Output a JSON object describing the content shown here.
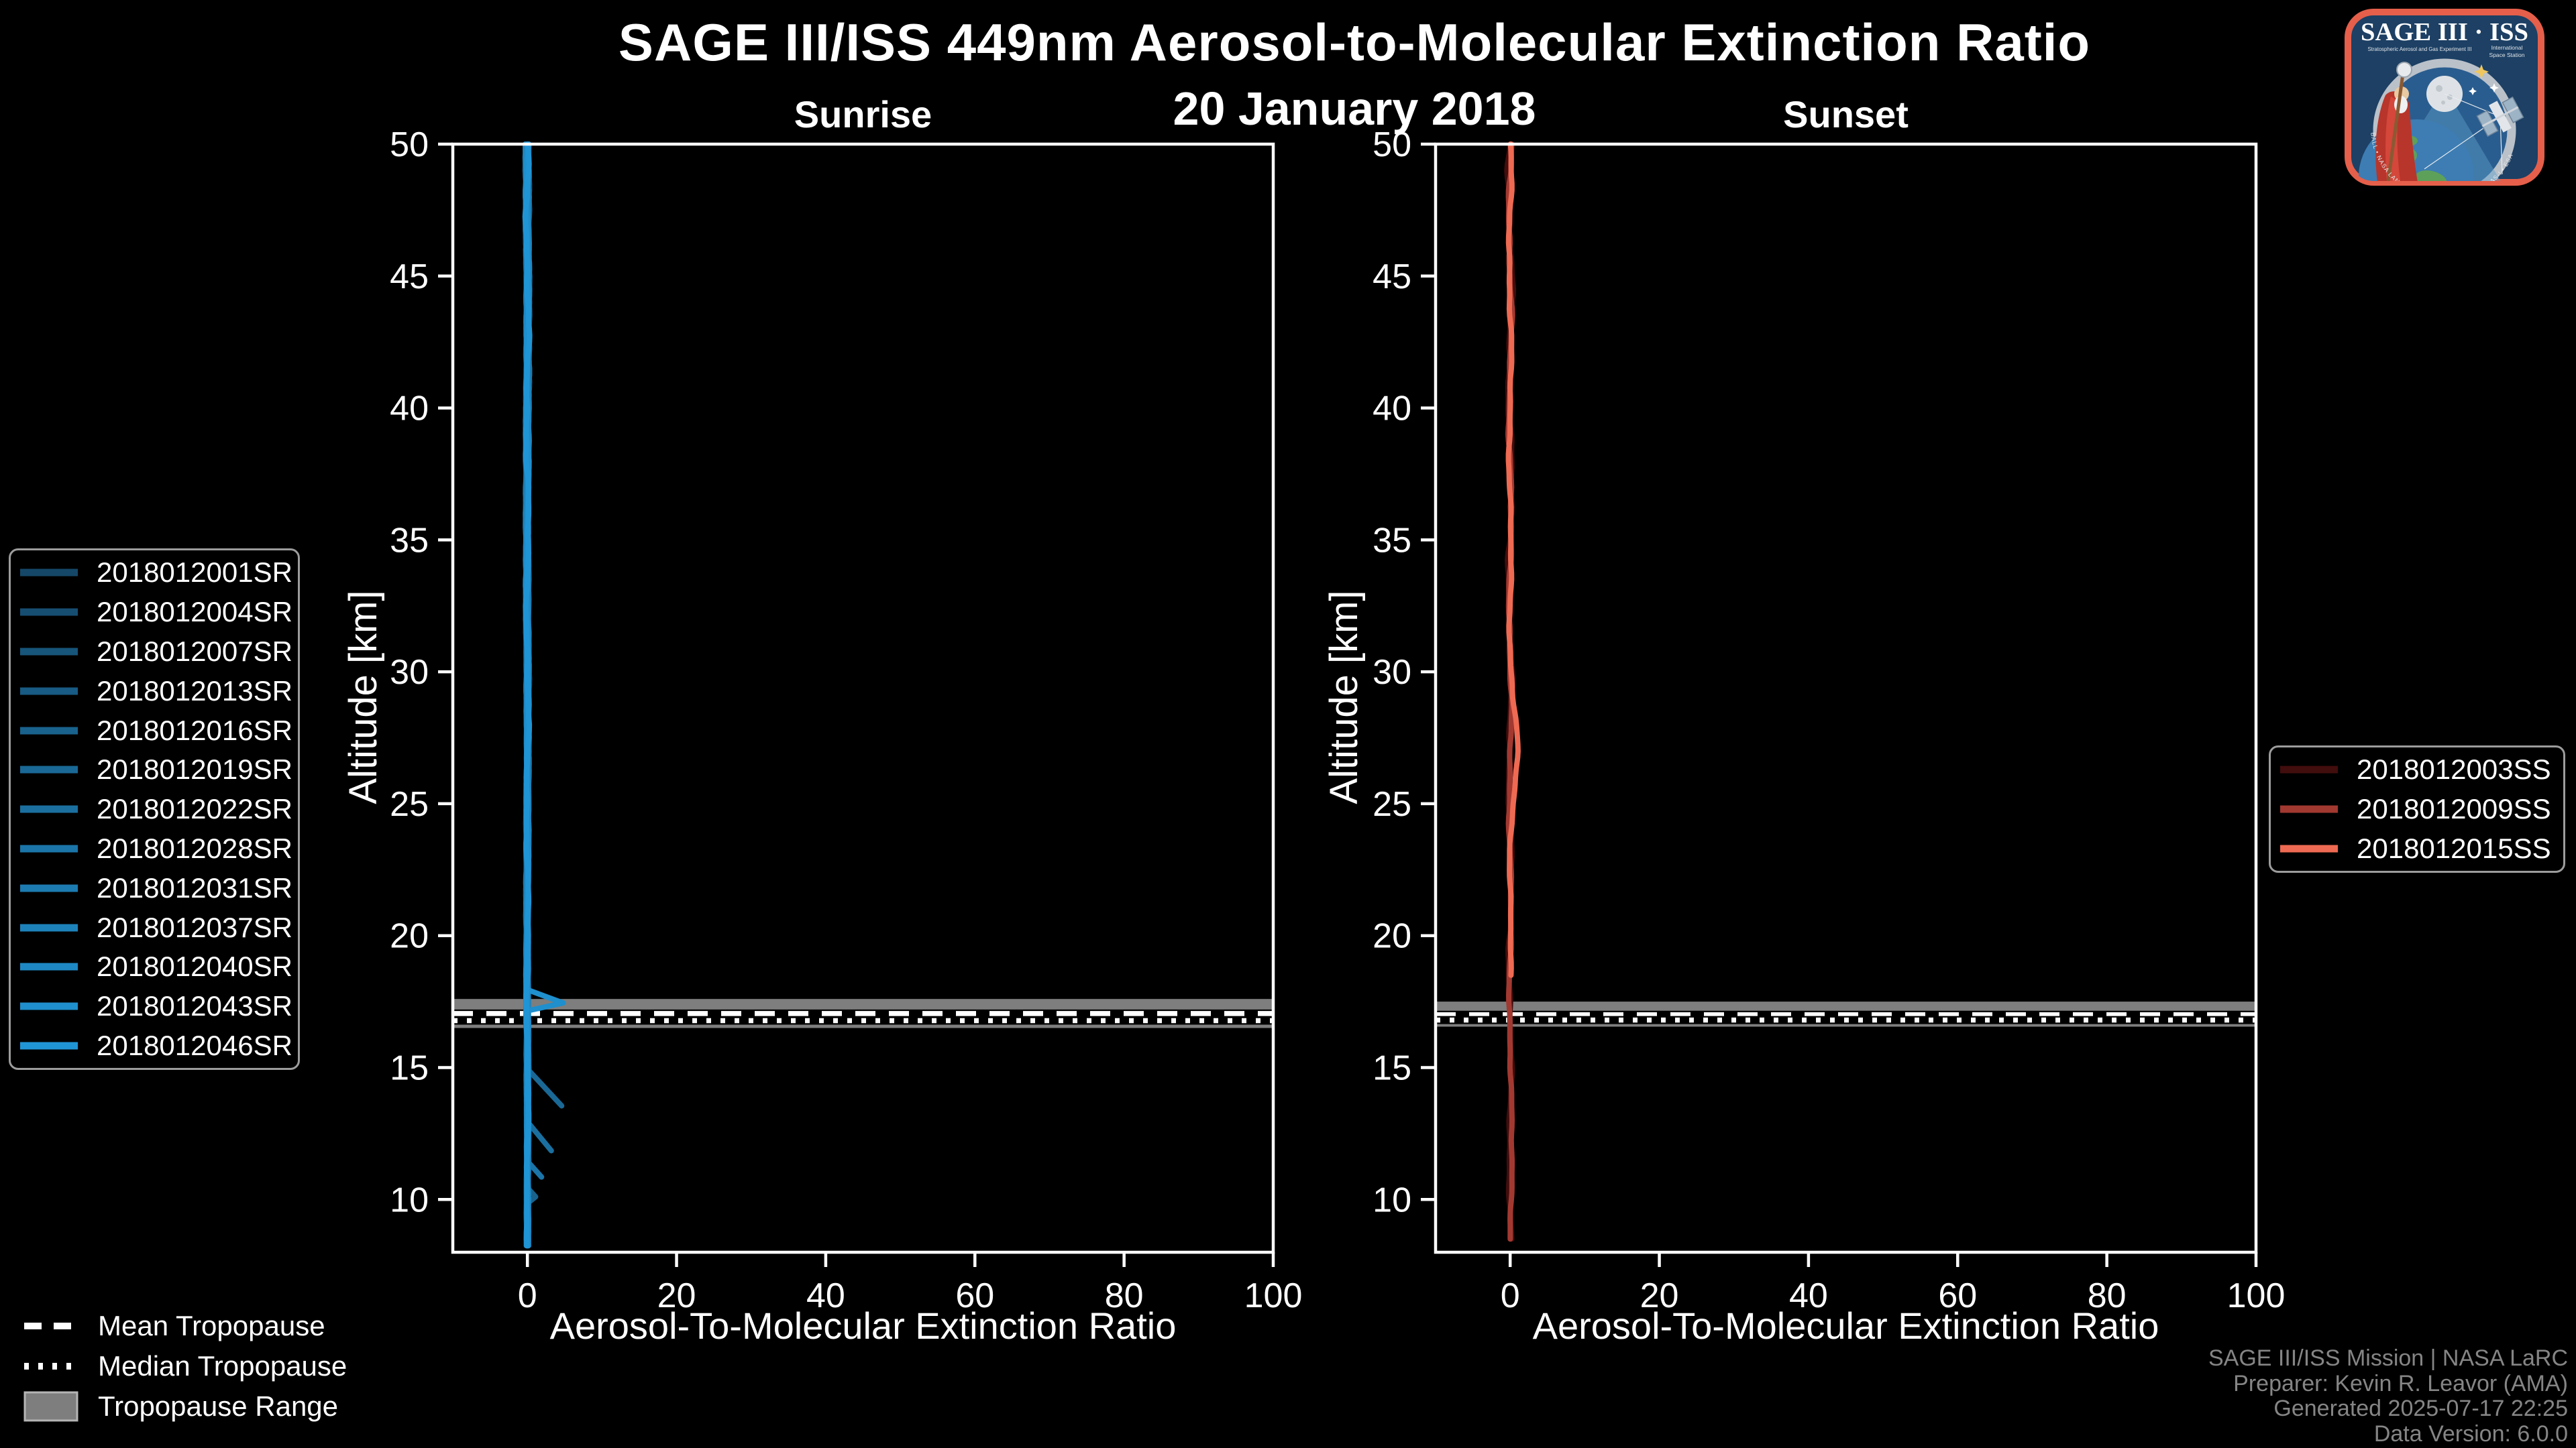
{
  "title": "SAGE III/ISS 449nm Aerosol-to-Molecular Extinction Ratio",
  "subtitle": "20 January 2018",
  "colors": {
    "background": "#000000",
    "foreground": "#ffffff",
    "tropopause_band": "#7e7e7e",
    "legend_border": "#9c9c9c",
    "credit_text": "#858585"
  },
  "tropopause_legend": {
    "mean_label": "Mean Tropopause",
    "median_label": "Median Tropopause",
    "range_label": "Tropopause Range"
  },
  "credit": {
    "line1": "SAGE III/ISS Mission | NASA LaRC",
    "line2": "Preparer: Kevin R. Leavor (AMA)",
    "line3": "Generated 2025-07-17 22:25",
    "line4": "Data Version: 6.0.0"
  },
  "logo": {
    "title": "SAGE III · ISS",
    "sub_left": "Stratospheric Aerosol and Gas Experiment III",
    "sub_right_line1": "International",
    "sub_right_line2": "Space Station",
    "ring_text": "BALL • NASA LANGLEY RESEARCH CENTER • TAS-I • ESA"
  },
  "chart_data": [
    {
      "type": "line",
      "panel": "Sunrise",
      "xlabel": "Aerosol-To-Molecular Extinction Ratio",
      "ylabel": "Altitude [km]",
      "xlim": [
        -10,
        100
      ],
      "ylim": [
        8,
        50
      ],
      "x_ticks": [
        0,
        20,
        40,
        60,
        80,
        100
      ],
      "y_ticks": [
        50,
        45,
        40,
        35,
        30,
        25,
        20,
        15,
        10
      ],
      "grid": false,
      "legend_position": "outside-left",
      "tropopause": {
        "range_km": [
          16.5,
          17.6
        ],
        "mean_km": 17.05,
        "median_km": 16.78,
        "band_color": "#7e7e7e"
      },
      "series": [
        {
          "name": "2018012001SR",
          "color": "#154868",
          "ratio_base": 0,
          "alt_km_range": [
            8.2,
            50
          ],
          "wiggle": 0.38
        },
        {
          "name": "2018012004SR",
          "color": "#164e71",
          "ratio_base": 0,
          "alt_km_range": [
            8.2,
            50
          ],
          "wiggle": 0.36
        },
        {
          "name": "2018012007SR",
          "color": "#17557a",
          "ratio_base": 0,
          "alt_km_range": [
            8.2,
            50
          ],
          "wiggle": 0.36
        },
        {
          "name": "2018012013SR",
          "color": "#185b84",
          "ratio_base": 0,
          "alt_km_range": [
            8.2,
            50
          ],
          "wiggle": 0.35
        },
        {
          "name": "2018012016SR",
          "color": "#19628d",
          "ratio_base": 0,
          "alt_km_range": [
            8.2,
            50
          ],
          "wiggle": 0.35,
          "extra_segments": [
            [
              [
                0,
                10.45
              ],
              [
                1.1,
                10.1
              ],
              [
                0,
                9.85
              ]
            ]
          ]
        },
        {
          "name": "2018012019SR",
          "color": "#1a6896",
          "ratio_base": 0,
          "alt_km_range": [
            8.2,
            50
          ],
          "wiggle": 0.35,
          "extra_segments": [
            [
              [
                0,
                14.95
              ],
              [
                4.6,
                13.55
              ]
            ]
          ]
        },
        {
          "name": "2018012022SR",
          "color": "#1a6f9f",
          "ratio_base": 0,
          "alt_km_range": [
            8.2,
            50
          ],
          "wiggle": 0.34,
          "extra_segments": [
            [
              [
                0,
                12.95
              ],
              [
                3.2,
                11.85
              ]
            ]
          ]
        },
        {
          "name": "2018012028SR",
          "color": "#1b75a8",
          "ratio_base": 0,
          "alt_km_range": [
            8.2,
            50
          ],
          "wiggle": 0.34,
          "extra_segments": [
            [
              [
                0,
                11.45
              ],
              [
                1.9,
                10.85
              ]
            ]
          ]
        },
        {
          "name": "2018012031SR",
          "color": "#1c7bb1",
          "ratio_base": 0,
          "alt_km_range": [
            8.2,
            50
          ],
          "wiggle": 0.34
        },
        {
          "name": "2018012037SR",
          "color": "#1d82ba",
          "ratio_base": 0,
          "alt_km_range": [
            8.2,
            50
          ],
          "wiggle": 0.33
        },
        {
          "name": "2018012040SR",
          "color": "#1e88c4",
          "ratio_base": 0,
          "alt_km_range": [
            8.2,
            50
          ],
          "wiggle": 0.33
        },
        {
          "name": "2018012043SR",
          "color": "#1f8fcd",
          "ratio_base": 0,
          "alt_km_range": [
            8.2,
            50
          ],
          "wiggle": 0.33,
          "extra_segments": [
            [
              [
                0,
                17.95
              ],
              [
                4.8,
                17.45
              ],
              [
                0,
                17.15
              ]
            ]
          ]
        },
        {
          "name": "2018012046SR",
          "color": "#2095d6",
          "ratio_base": 0,
          "alt_km_range": [
            8.2,
            50
          ],
          "wiggle": 0.35
        }
      ]
    },
    {
      "type": "line",
      "panel": "Sunset",
      "xlabel": "Aerosol-To-Molecular Extinction Ratio",
      "ylabel": "Altitude [km]",
      "xlim": [
        -10,
        100
      ],
      "ylim": [
        8,
        50
      ],
      "x_ticks": [
        0,
        20,
        40,
        60,
        80,
        100
      ],
      "y_ticks": [
        50,
        45,
        40,
        35,
        30,
        25,
        20,
        15,
        10
      ],
      "grid": false,
      "legend_position": "outside-right",
      "tropopause": {
        "range_km": [
          16.55,
          17.5
        ],
        "mean_km": 17.0,
        "median_km": 16.8,
        "band_color": "#7e7e7e"
      },
      "series": [
        {
          "name": "2018012003SS",
          "color": "#420d0d",
          "ratio_base": 0,
          "alt_km_range": [
            8.35,
            50
          ],
          "wiggle": 0.5
        },
        {
          "name": "2018012009SS",
          "color": "#a23931",
          "ratio_base": 0,
          "alt_km_range": [
            8.35,
            50
          ],
          "wiggle": 0.35,
          "bulges": [
            {
              "center_km": 11,
              "ratio": 0.3,
              "width_km": 2
            }
          ]
        },
        {
          "name": "2018012015SS",
          "color": "#ee6a52",
          "ratio_base": 0,
          "alt_km_range": [
            18.4,
            50
          ],
          "wiggle": 0.3,
          "bulges": [
            {
              "center_km": 27,
              "ratio": 0.85,
              "width_km": 2.5
            }
          ]
        }
      ]
    }
  ]
}
